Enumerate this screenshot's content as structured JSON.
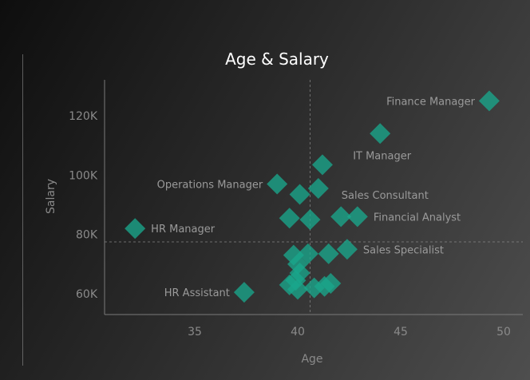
{
  "chart_data": {
    "type": "scatter",
    "title": "Age & Salary",
    "xlabel": "Age",
    "ylabel": "Salary",
    "xlim": [
      31,
      51
    ],
    "ylim": [
      53000,
      133000
    ],
    "x_ticks": [
      35,
      40,
      45,
      50
    ],
    "y_ticks": [
      60000,
      80000,
      100000,
      120000
    ],
    "y_tick_labels": [
      "60K",
      "80K",
      "100K",
      "120K"
    ],
    "reference_lines": {
      "x": 40.6,
      "y": 77500
    },
    "colors": {
      "marker": "#1aa78c",
      "label": "#9a9a9a",
      "title": "#ffffff",
      "axis": "#7a7a7a"
    },
    "points": [
      {
        "x": 49.3,
        "y": 125000,
        "label": "Finance Manager"
      },
      {
        "x": 44.0,
        "y": 114000,
        "label": "IT Manager"
      },
      {
        "x": 41.2,
        "y": 103500,
        "label": ""
      },
      {
        "x": 39.0,
        "y": 97000,
        "label": "Operations Manager"
      },
      {
        "x": 40.1,
        "y": 93500,
        "label": ""
      },
      {
        "x": 41.0,
        "y": 95500,
        "label": "Sales Consultant"
      },
      {
        "x": 39.6,
        "y": 85500,
        "label": ""
      },
      {
        "x": 40.6,
        "y": 85000,
        "label": ""
      },
      {
        "x": 42.1,
        "y": 86000,
        "label": ""
      },
      {
        "x": 42.9,
        "y": 86000,
        "label": "Financial Analyst"
      },
      {
        "x": 32.1,
        "y": 82000,
        "label": "HR Manager"
      },
      {
        "x": 42.4,
        "y": 75000,
        "label": "Sales Specialist"
      },
      {
        "x": 41.5,
        "y": 73500,
        "label": ""
      },
      {
        "x": 40.5,
        "y": 73500,
        "label": ""
      },
      {
        "x": 39.8,
        "y": 73000,
        "label": ""
      },
      {
        "x": 40.0,
        "y": 70000,
        "label": ""
      },
      {
        "x": 40.1,
        "y": 67000,
        "label": ""
      },
      {
        "x": 39.6,
        "y": 63000,
        "label": ""
      },
      {
        "x": 40.0,
        "y": 61500,
        "label": ""
      },
      {
        "x": 40.8,
        "y": 62000,
        "label": ""
      },
      {
        "x": 41.3,
        "y": 62500,
        "label": ""
      },
      {
        "x": 41.6,
        "y": 63500,
        "label": ""
      },
      {
        "x": 39.9,
        "y": 64500,
        "label": ""
      },
      {
        "x": 37.4,
        "y": 60500,
        "label": "HR Assistant"
      }
    ]
  }
}
